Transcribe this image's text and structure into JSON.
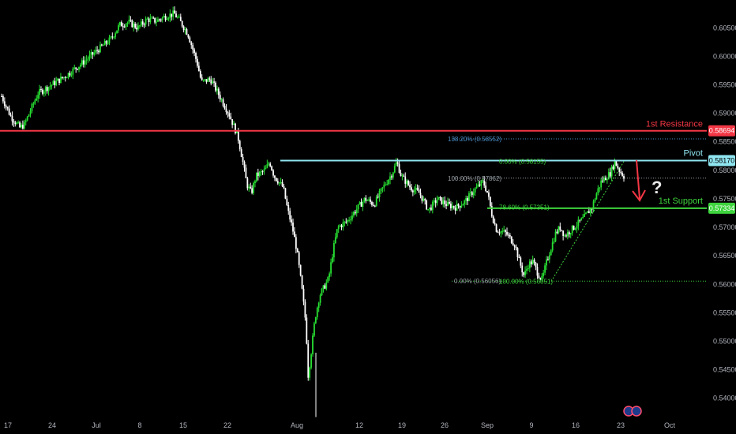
{
  "colors": {
    "background": "#000000",
    "candle_up": "#27e032",
    "candle_down": "#ffffff",
    "resistance": "#f23645",
    "pivot": "#8fe5f0",
    "support": "#3ed43e",
    "fib_gray": "#9aa0a6",
    "fib_blue": "#4a8fc7",
    "arrow": "#f23645",
    "axis_text": "#b2b5be"
  },
  "chart_data": {
    "type": "candlestick",
    "x_ticks": [
      "17",
      "24",
      "Jul",
      "8",
      "15",
      "22",
      "Aug",
      "12",
      "19",
      "26",
      "Sep",
      "9",
      "16",
      "23",
      "Oct"
    ],
    "y_ticks": [
      "0.60500",
      "0.60000",
      "0.59500",
      "0.59000",
      "0.58500",
      "0.58000",
      "0.57500",
      "0.57000",
      "0.56500",
      "0.56000",
      "0.55500",
      "0.55000",
      "0.54500",
      "0.54000"
    ],
    "ylim": [
      0.5365,
      0.6085
    ],
    "levels": {
      "resistance": {
        "label": "1st Resistance",
        "value": 0.58694,
        "badge": "0.58694"
      },
      "pivot": {
        "label": "Pivot",
        "value": 0.5817,
        "badge": "0.58170"
      },
      "support": {
        "label": "1st Support",
        "value": 0.57334,
        "badge": "0.57334"
      }
    },
    "fib_labels": [
      {
        "text": "138.20% (0.58552)",
        "value": 0.58552
      },
      {
        "text": "0.00% (0.58155)",
        "value": 0.58155
      },
      {
        "text": "100.00% (0.57862)",
        "value": 0.57862
      },
      {
        "text": "78.60% (0.57351)",
        "value": 0.57351
      },
      {
        "text": "0.00% (0.56056)",
        "value": 0.56056
      },
      {
        "text": "100.00% (0.56051)",
        "value": 0.56051
      }
    ],
    "question_mark": "?",
    "price_path": [
      [
        0,
        0.593
      ],
      [
        2,
        0.5895
      ],
      [
        4,
        0.5875
      ],
      [
        5,
        0.588
      ],
      [
        8,
        0.5935
      ],
      [
        12,
        0.5955
      ],
      [
        14,
        0.5965
      ],
      [
        18,
        0.599
      ],
      [
        21,
        0.601
      ],
      [
        24,
        0.603
      ],
      [
        26,
        0.6055
      ],
      [
        28,
        0.606
      ],
      [
        30,
        0.605
      ],
      [
        32,
        0.6065
      ],
      [
        34,
        0.6062
      ],
      [
        36,
        0.607
      ],
      [
        38,
        0.6075
      ],
      [
        39,
        0.6065
      ],
      [
        41,
        0.604
      ],
      [
        43,
        0.599
      ],
      [
        44,
        0.5955
      ],
      [
        46,
        0.596
      ],
      [
        48,
        0.593
      ],
      [
        50,
        0.59
      ],
      [
        52,
        0.586
      ],
      [
        53,
        0.582
      ],
      [
        54,
        0.5775
      ],
      [
        55,
        0.576
      ],
      [
        56,
        0.579
      ],
      [
        58,
        0.58
      ],
      [
        59,
        0.5815
      ],
      [
        60,
        0.579
      ],
      [
        62,
        0.577
      ],
      [
        63,
        0.573
      ],
      [
        64,
        0.57
      ],
      [
        65,
        0.566
      ],
      [
        66,
        0.56
      ],
      [
        67,
        0.553
      ],
      [
        67.5,
        0.544
      ],
      [
        68,
        0.547
      ],
      [
        69,
        0.554
      ],
      [
        70,
        0.558
      ],
      [
        72,
        0.561
      ],
      [
        73,
        0.566
      ],
      [
        74,
        0.57
      ],
      [
        76,
        0.571
      ],
      [
        78,
        0.573
      ],
      [
        80,
        0.575
      ],
      [
        82,
        0.574
      ],
      [
        84,
        0.577
      ],
      [
        86,
        0.5795
      ],
      [
        87,
        0.5815
      ],
      [
        88,
        0.579
      ],
      [
        90,
        0.577
      ],
      [
        92,
        0.576
      ],
      [
        94,
        0.573
      ],
      [
        96,
        0.575
      ],
      [
        98,
        0.574
      ],
      [
        100,
        0.5735
      ],
      [
        102,
        0.5745
      ],
      [
        104,
        0.5765
      ],
      [
        106,
        0.578
      ],
      [
        107,
        0.576
      ],
      [
        108,
        0.572
      ],
      [
        109,
        0.5695
      ],
      [
        111,
        0.569
      ],
      [
        113,
        0.567
      ],
      [
        114,
        0.564
      ],
      [
        115,
        0.5615
      ],
      [
        116,
        0.5635
      ],
      [
        117,
        0.564
      ],
      [
        118,
        0.562
      ],
      [
        119,
        0.5608
      ],
      [
        120,
        0.564
      ],
      [
        121,
        0.5665
      ],
      [
        122,
        0.569
      ],
      [
        123,
        0.57
      ],
      [
        124,
        0.5685
      ],
      [
        126,
        0.57
      ],
      [
        128,
        0.5715
      ],
      [
        130,
        0.5735
      ],
      [
        131,
        0.576
      ],
      [
        132,
        0.578
      ],
      [
        134,
        0.5795
      ],
      [
        135,
        0.5815
      ],
      [
        136,
        0.58
      ],
      [
        137,
        0.579
      ]
    ]
  }
}
